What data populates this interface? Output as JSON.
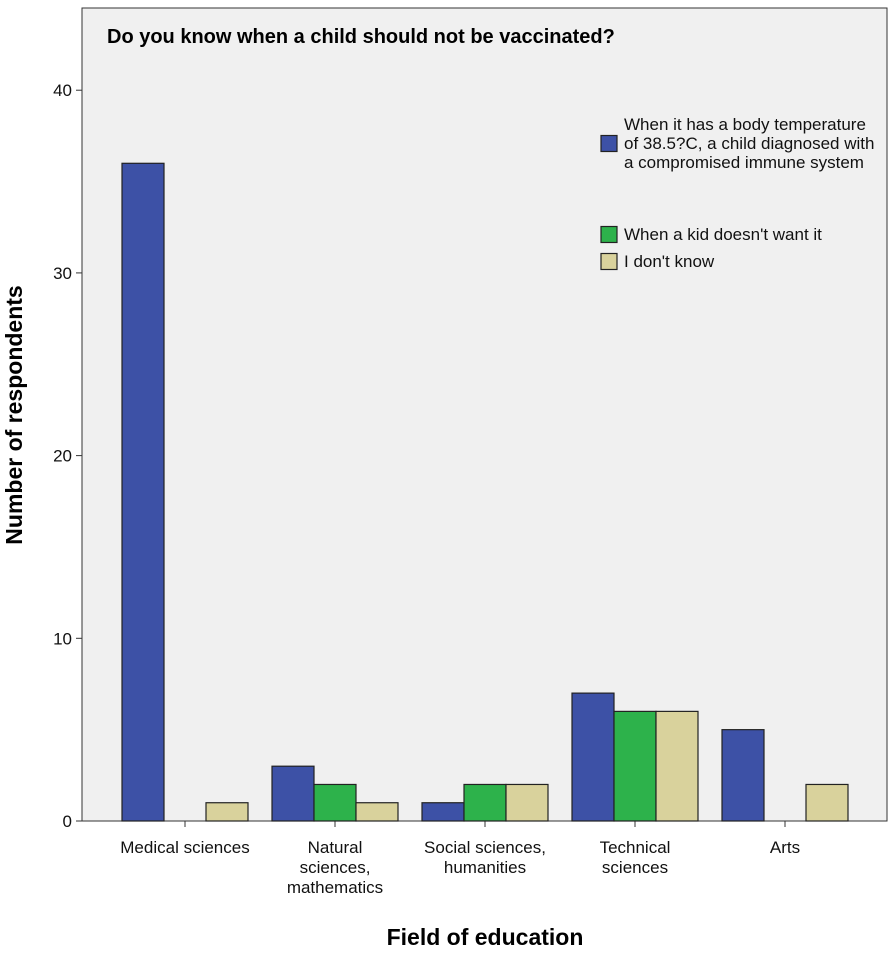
{
  "chart_data": {
    "type": "bar",
    "title": "Do you know when a child should not be vaccinated?",
    "x_label": "Field of education",
    "y_label": "Number of respondents",
    "categories": [
      "Medical sciences",
      "Natural sciences, mathematics",
      "Social sciences, humanities",
      "Technical sciences",
      "Arts"
    ],
    "series": [
      {
        "name": "When it has a body temperature of 38.5?C, a child diagnosed with a compromised immune system",
        "color": "#3d51a6",
        "values": [
          36,
          3,
          1,
          7,
          5
        ]
      },
      {
        "name": "When a kid doesn't want it",
        "color": "#2db24b",
        "values": [
          0,
          2,
          2,
          6,
          0
        ]
      },
      {
        "name": "I don't know",
        "color": "#d9d29c",
        "values": [
          1,
          1,
          2,
          6,
          2
        ]
      }
    ],
    "ylim": [
      0,
      44.5
    ],
    "yticks": [
      0,
      10,
      20,
      30,
      40
    ]
  }
}
